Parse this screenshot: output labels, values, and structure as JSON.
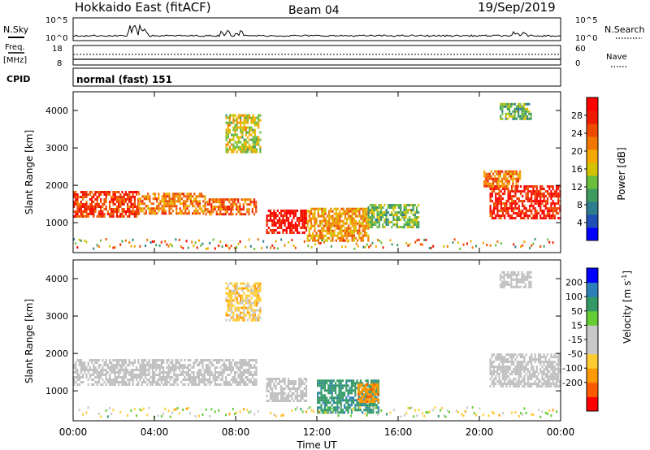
{
  "header": {
    "site": "Hokkaido East (fitACF)",
    "beam": "Beam 04",
    "date": "19/Sep/2019"
  },
  "status_panels": {
    "nsky": {
      "label": "N.Sky",
      "tick_top": "10^5",
      "tick_bottom": "10^0"
    },
    "nsearch": {
      "label": "N.Search",
      "tick_top": "10^5",
      "tick_bottom": "10^0"
    },
    "freq": {
      "label_line1": "Freq.",
      "label_line2": "[MHz]",
      "ticks": [
        "18",
        "8"
      ]
    },
    "nave": {
      "label": "Nave",
      "ticks": [
        "60",
        "0"
      ]
    },
    "cpid": {
      "label": "CPID",
      "value": "normal (fast) 151"
    }
  },
  "colors": {
    "power_scale": [
      "#0000ff",
      "#1f4fb4",
      "#2e7d8e",
      "#3f9a5f",
      "#6cbe3d",
      "#d4c200",
      "#f5a800",
      "#f07800",
      "#ef4a00",
      "#ee1a00",
      "#ff0000"
    ],
    "velocity_scale": [
      "#ff0000",
      "#ff5a00",
      "#ff9a00",
      "#ffcc33",
      "#c8c8c8",
      "#c8c8c8",
      "#66cc33",
      "#339966",
      "#2d7fb8",
      "#0000ff"
    ],
    "ground_scatter": "#c0c0c0"
  },
  "chart_data": [
    {
      "type": "heatmap",
      "name": "power",
      "ylabel": "Slant Range [km]",
      "xlim": [
        0,
        24
      ],
      "ylim": [
        200,
        4500
      ],
      "yticks": [
        1000,
        2000,
        3000,
        4000
      ],
      "colorbar": {
        "label": "Power [dB]",
        "ticks": [
          4,
          8,
          12,
          16,
          20,
          24,
          28
        ],
        "range": [
          0,
          32
        ]
      },
      "regions": [
        {
          "t0": 0.0,
          "t1": 3.2,
          "r0": 1150,
          "r1": 1850,
          "level": 26
        },
        {
          "t0": 3.2,
          "t1": 6.5,
          "r0": 1250,
          "r1": 1800,
          "level": 22
        },
        {
          "t0": 6.5,
          "t1": 9.0,
          "r0": 1200,
          "r1": 1650,
          "level": 24
        },
        {
          "t0": 9.5,
          "t1": 11.5,
          "r0": 700,
          "r1": 1350,
          "level": 30
        },
        {
          "t0": 11.5,
          "t1": 14.5,
          "r0": 500,
          "r1": 1400,
          "level": 20
        },
        {
          "t0": 14.5,
          "t1": 17.0,
          "r0": 900,
          "r1": 1500,
          "level": 13
        },
        {
          "t0": 7.5,
          "t1": 9.2,
          "r0": 2900,
          "r1": 3900,
          "level": 16
        },
        {
          "t0": 20.5,
          "t1": 24.0,
          "r0": 1100,
          "r1": 2000,
          "level": 28
        },
        {
          "t0": 20.2,
          "t1": 22.0,
          "r0": 2000,
          "r1": 2400,
          "level": 22
        },
        {
          "t0": 21.0,
          "t1": 22.5,
          "r0": 3800,
          "r1": 4200,
          "level": 12
        }
      ]
    },
    {
      "type": "heatmap",
      "name": "velocity",
      "ylabel": "Slant Range [km]",
      "xlabel": "Time UT",
      "xlim": [
        0,
        24
      ],
      "ylim": [
        200,
        4500
      ],
      "xticks": [
        "00:00",
        "04:00",
        "08:00",
        "12:00",
        "16:00",
        "20:00",
        "00:00"
      ],
      "yticks": [
        1000,
        2000,
        3000,
        4000
      ],
      "colorbar": {
        "label": "Velocity [m s^-1]",
        "ticks": [
          "200",
          "100",
          "50",
          "15",
          "-15",
          "-50",
          "-100",
          "-200"
        ]
      },
      "regions": [
        {
          "t0": 0.0,
          "t1": 9.0,
          "r0": 1150,
          "r1": 1850,
          "velocity": 0
        },
        {
          "t0": 9.5,
          "t1": 11.5,
          "r0": 700,
          "r1": 1350,
          "velocity": 0
        },
        {
          "t0": 12.0,
          "t1": 15.0,
          "r0": 400,
          "r1": 1300,
          "velocity": 80
        },
        {
          "t0": 14.0,
          "t1": 15.0,
          "r0": 700,
          "r1": 1200,
          "velocity": -80
        },
        {
          "t0": 7.5,
          "t1": 9.2,
          "r0": 2900,
          "r1": 3900,
          "velocity": -30
        },
        {
          "t0": 20.5,
          "t1": 24.0,
          "r0": 1100,
          "r1": 2000,
          "velocity": 0
        },
        {
          "t0": 21.0,
          "t1": 22.5,
          "r0": 3800,
          "r1": 4200,
          "velocity": 0
        }
      ]
    }
  ]
}
